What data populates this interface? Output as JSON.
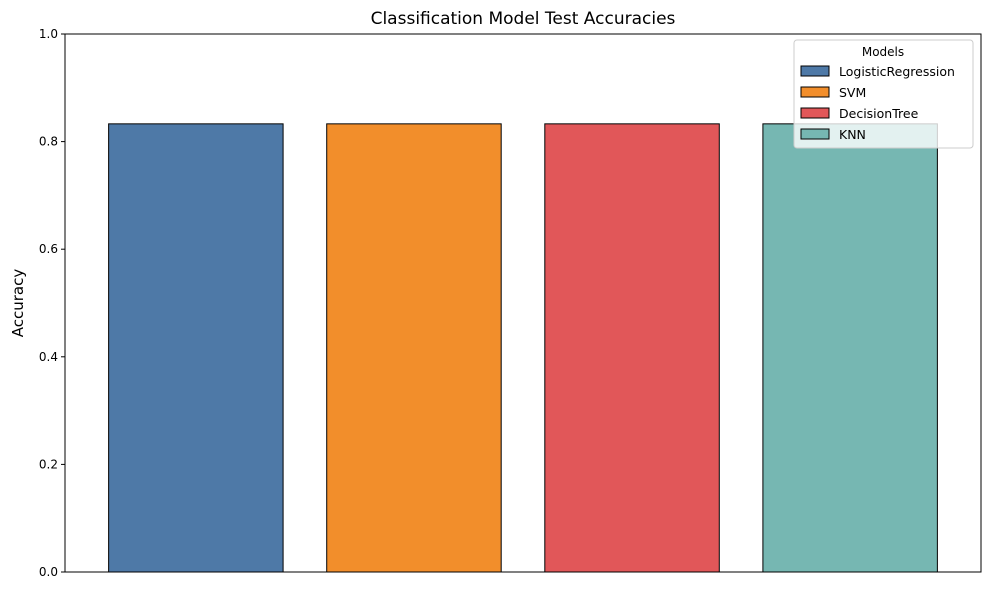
{
  "chart_data": {
    "type": "bar",
    "title": "Classification Model Test Accuracies",
    "xlabel": "",
    "ylabel": "Accuracy",
    "categories": [
      "LogisticRegression",
      "SVM",
      "DecisionTree",
      "KNN"
    ],
    "values": [
      0.833,
      0.833,
      0.833,
      0.833
    ],
    "colors": [
      "#4e79a7",
      "#f28e2b",
      "#e15759",
      "#76b7b2"
    ],
    "ylim": [
      0,
      1.0
    ],
    "yticks": [
      "0.0",
      "0.2",
      "0.4",
      "0.6",
      "0.8",
      "1.0"
    ],
    "grid": false,
    "legend": {
      "title": "Models",
      "position": "top-right",
      "entries": [
        "LogisticRegression",
        "SVM",
        "DecisionTree",
        "KNN"
      ]
    }
  }
}
